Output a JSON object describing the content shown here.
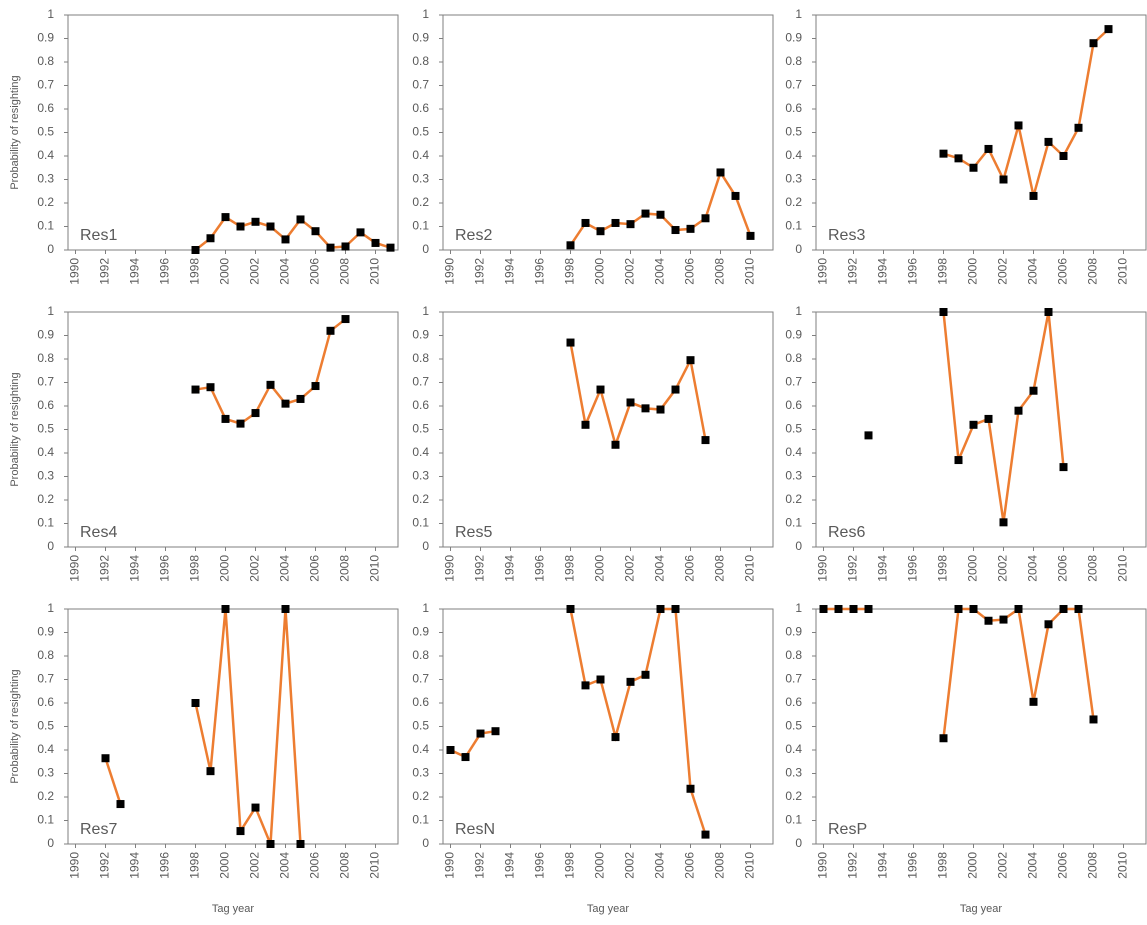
{
  "chart_data": [
    {
      "type": "line",
      "annotation": "Res1",
      "ylabel": "Probability of resighting",
      "color": "#ed7d31",
      "marker_color": "#000000",
      "x": [
        1990,
        1991,
        1992,
        1993,
        1994,
        1995,
        1996,
        1997,
        1998,
        1999,
        2000,
        2001,
        2002,
        2003,
        2004,
        2005,
        2006,
        2007,
        2008,
        2009,
        2010,
        2011
      ],
      "values": [
        null,
        null,
        null,
        null,
        null,
        null,
        null,
        null,
        0,
        0.05,
        0.14,
        0.1,
        0.12,
        0.1,
        0.045,
        0.13,
        0.08,
        0.01,
        0.015,
        0.075,
        0.03,
        0.01
      ],
      "xlim": [
        1989.5,
        2011.5
      ],
      "xticks": [
        1990,
        1992,
        1994,
        1996,
        1998,
        2000,
        2002,
        2004,
        2006,
        2008,
        2010
      ],
      "ylim": [
        0,
        1
      ],
      "yticks": [
        0,
        0.1,
        0.2,
        0.3,
        0.4,
        0.5,
        0.6,
        0.7,
        0.8,
        0.9,
        1
      ]
    },
    {
      "type": "line",
      "annotation": "Res2",
      "color": "#ed7d31",
      "marker_color": "#000000",
      "x": [
        1990,
        1991,
        1992,
        1993,
        1994,
        1995,
        1996,
        1997,
        1998,
        1999,
        2000,
        2001,
        2002,
        2003,
        2004,
        2005,
        2006,
        2007,
        2008,
        2009,
        2010,
        2011
      ],
      "values": [
        null,
        null,
        null,
        null,
        null,
        null,
        null,
        null,
        0.02,
        0.115,
        0.08,
        0.115,
        0.11,
        0.155,
        0.15,
        0.085,
        0.09,
        0.135,
        0.33,
        0.23,
        0.06,
        null
      ],
      "xlim": [
        1989.5,
        2011.5
      ],
      "xticks": [
        1990,
        1992,
        1994,
        1996,
        1998,
        2000,
        2002,
        2004,
        2006,
        2008,
        2010
      ],
      "ylim": [
        0,
        1
      ],
      "yticks": [
        0,
        0.1,
        0.2,
        0.3,
        0.4,
        0.5,
        0.6,
        0.7,
        0.8,
        0.9,
        1
      ]
    },
    {
      "type": "line",
      "annotation": "Res3",
      "color": "#ed7d31",
      "marker_color": "#000000",
      "x": [
        1990,
        1991,
        1992,
        1993,
        1994,
        1995,
        1996,
        1997,
        1998,
        1999,
        2000,
        2001,
        2002,
        2003,
        2004,
        2005,
        2006,
        2007,
        2008,
        2009,
        2010,
        2011
      ],
      "values": [
        null,
        null,
        null,
        null,
        null,
        null,
        null,
        null,
        0.41,
        0.39,
        0.35,
        0.43,
        0.3,
        0.53,
        0.23,
        0.46,
        0.4,
        0.52,
        0.88,
        0.94,
        null,
        null
      ],
      "xlim": [
        1989.5,
        2011.5
      ],
      "xticks": [
        1990,
        1992,
        1994,
        1996,
        1998,
        2000,
        2002,
        2004,
        2006,
        2008,
        2010
      ],
      "ylim": [
        0,
        1
      ],
      "yticks": [
        0,
        0.1,
        0.2,
        0.3,
        0.4,
        0.5,
        0.6,
        0.7,
        0.8,
        0.9,
        1
      ]
    },
    {
      "type": "line",
      "annotation": "Res4",
      "ylabel": "Probability of resighting",
      "color": "#ed7d31",
      "marker_color": "#000000",
      "x": [
        1990,
        1991,
        1992,
        1993,
        1994,
        1995,
        1996,
        1997,
        1998,
        1999,
        2000,
        2001,
        2002,
        2003,
        2004,
        2005,
        2006,
        2007,
        2008,
        2009,
        2010,
        2011
      ],
      "values": [
        null,
        null,
        null,
        null,
        null,
        null,
        null,
        null,
        0.67,
        0.68,
        0.545,
        0.525,
        0.57,
        0.69,
        0.61,
        0.63,
        0.685,
        0.92,
        0.97,
        null,
        null,
        null
      ],
      "xlim": [
        1989.5,
        2011.5
      ],
      "xticks": [
        1990,
        1992,
        1994,
        1996,
        1998,
        2000,
        2002,
        2004,
        2006,
        2008,
        2010
      ],
      "ylim": [
        0,
        1
      ],
      "yticks": [
        0,
        0.1,
        0.2,
        0.3,
        0.4,
        0.5,
        0.6,
        0.7,
        0.8,
        0.9,
        1
      ]
    },
    {
      "type": "line",
      "annotation": "Res5",
      "color": "#ed7d31",
      "marker_color": "#000000",
      "x": [
        1990,
        1991,
        1992,
        1993,
        1994,
        1995,
        1996,
        1997,
        1998,
        1999,
        2000,
        2001,
        2002,
        2003,
        2004,
        2005,
        2006,
        2007,
        2008,
        2009,
        2010,
        2011
      ],
      "values": [
        null,
        null,
        null,
        null,
        null,
        null,
        null,
        null,
        0.87,
        0.52,
        0.67,
        0.435,
        0.615,
        0.59,
        0.585,
        0.67,
        0.795,
        0.455,
        null,
        null,
        null,
        null
      ],
      "xlim": [
        1989.5,
        2011.5
      ],
      "xticks": [
        1990,
        1992,
        1994,
        1996,
        1998,
        2000,
        2002,
        2004,
        2006,
        2008,
        2010
      ],
      "ylim": [
        0,
        1
      ],
      "yticks": [
        0,
        0.1,
        0.2,
        0.3,
        0.4,
        0.5,
        0.6,
        0.7,
        0.8,
        0.9,
        1
      ]
    },
    {
      "type": "line",
      "annotation": "Res6",
      "color": "#ed7d31",
      "marker_color": "#000000",
      "x": [
        1990,
        1991,
        1992,
        1993,
        1994,
        1995,
        1996,
        1997,
        1998,
        1999,
        2000,
        2001,
        2002,
        2003,
        2004,
        2005,
        2006,
        2007,
        2008,
        2009,
        2010,
        2011
      ],
      "values": [
        null,
        null,
        null,
        0.475,
        null,
        null,
        null,
        null,
        1,
        0.37,
        0.52,
        0.545,
        0.105,
        0.58,
        0.665,
        1,
        0.34,
        null,
        null,
        null,
        null,
        null
      ],
      "xlim": [
        1989.5,
        2011.5
      ],
      "xticks": [
        1990,
        1992,
        1994,
        1996,
        1998,
        2000,
        2002,
        2004,
        2006,
        2008,
        2010
      ],
      "ylim": [
        0,
        1
      ],
      "yticks": [
        0,
        0.1,
        0.2,
        0.3,
        0.4,
        0.5,
        0.6,
        0.7,
        0.8,
        0.9,
        1
      ]
    },
    {
      "type": "line",
      "annotation": "Res7",
      "ylabel": "Probability of resighting",
      "xlabel": "Tag year",
      "color": "#ed7d31",
      "marker_color": "#000000",
      "x": [
        1990,
        1991,
        1992,
        1993,
        1994,
        1995,
        1996,
        1997,
        1998,
        1999,
        2000,
        2001,
        2002,
        2003,
        2004,
        2005,
        2006,
        2007,
        2008,
        2009,
        2010,
        2011
      ],
      "values": [
        null,
        null,
        0.365,
        0.17,
        null,
        null,
        null,
        null,
        0.6,
        0.31,
        1,
        0.055,
        0.155,
        0,
        1,
        0,
        null,
        null,
        null,
        null,
        null,
        null
      ],
      "xlim": [
        1989.5,
        2011.5
      ],
      "xticks": [
        1990,
        1992,
        1994,
        1996,
        1998,
        2000,
        2002,
        2004,
        2006,
        2008,
        2010
      ],
      "ylim": [
        0,
        1
      ],
      "yticks": [
        0,
        0.1,
        0.2,
        0.3,
        0.4,
        0.5,
        0.6,
        0.7,
        0.8,
        0.9,
        1
      ]
    },
    {
      "type": "line",
      "annotation": "ResN",
      "xlabel": "Tag year",
      "color": "#ed7d31",
      "marker_color": "#000000",
      "x": [
        1990,
        1991,
        1992,
        1993,
        1994,
        1995,
        1996,
        1997,
        1998,
        1999,
        2000,
        2001,
        2002,
        2003,
        2004,
        2005,
        2006,
        2007,
        2008,
        2009,
        2010,
        2011
      ],
      "values": [
        0.4,
        0.37,
        0.47,
        0.48,
        null,
        null,
        null,
        null,
        1,
        0.675,
        0.7,
        0.455,
        0.69,
        0.72,
        1,
        1,
        0.235,
        0.04,
        null,
        null,
        null,
        null
      ],
      "xlim": [
        1989.5,
        2011.5
      ],
      "xticks": [
        1990,
        1992,
        1994,
        1996,
        1998,
        2000,
        2002,
        2004,
        2006,
        2008,
        2010
      ],
      "ylim": [
        0,
        1
      ],
      "yticks": [
        0,
        0.1,
        0.2,
        0.3,
        0.4,
        0.5,
        0.6,
        0.7,
        0.8,
        0.9,
        1
      ]
    },
    {
      "type": "line",
      "annotation": "ResP",
      "xlabel": "Tag year",
      "color": "#ed7d31",
      "marker_color": "#000000",
      "x": [
        1990,
        1991,
        1992,
        1993,
        1994,
        1995,
        1996,
        1997,
        1998,
        1999,
        2000,
        2001,
        2002,
        2003,
        2004,
        2005,
        2006,
        2007,
        2008,
        2009,
        2010,
        2011
      ],
      "values": [
        1,
        1,
        1,
        1,
        null,
        null,
        null,
        null,
        0.45,
        1,
        1,
        0.95,
        0.955,
        1,
        0.605,
        0.935,
        1,
        1,
        0.53,
        null,
        null,
        null
      ],
      "xlim": [
        1989.5,
        2011.5
      ],
      "xticks": [
        1990,
        1992,
        1994,
        1996,
        1998,
        2000,
        2002,
        2004,
        2006,
        2008,
        2010
      ],
      "ylim": [
        0,
        1
      ],
      "yticks": [
        0,
        0.1,
        0.2,
        0.3,
        0.4,
        0.5,
        0.6,
        0.7,
        0.8,
        0.9,
        1
      ]
    }
  ]
}
